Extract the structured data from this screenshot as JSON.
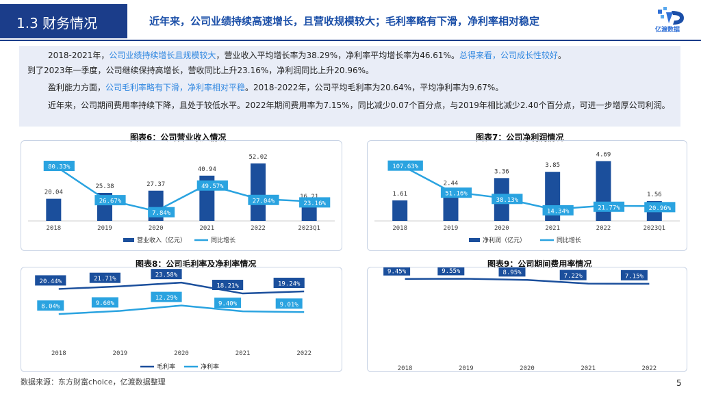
{
  "header": {
    "section": "1.3 财务情况",
    "title": "近年来，公司业绩持续高速增长，且营收规模较大；毛利率略有下滑，净利率相对稳定",
    "logo_text": "亿渡数据"
  },
  "summary": {
    "p1_a": "2018-2021年，",
    "p1_h1": "公司业绩持续增长且规模较大",
    "p1_b": "，营业收入平均增长率为38.29%，净利率平均增长率为46.61%。",
    "p1_h2": "总得来看，公司成长性较好",
    "p1_c": "。",
    "p2": "到了2023年一季度，公司继续保持高增长，营收同比上升23.16%，净利润同比上升20.96%。",
    "p3_a": "盈利能力方面，",
    "p3_h": "公司毛利率略有下滑，净利率相对平稳",
    "p3_b": "。2018-2022年，公司平均毛利率为20.64%，平均净利率为9.67%。",
    "p4": "近年来，公司期间费用率持续下降，且处于较低水平。2022年期间费用率为7.15%，同比减少0.07个百分点，与2019年相比减少2.40个百分点，可进一步增厚公司利润。"
  },
  "colors": {
    "bar": "#1b4f9c",
    "line": "#2aa3e0",
    "header": "#1b3d8a"
  },
  "chart_data": [
    {
      "type": "bar",
      "title": "图表6：公司营业收入情况",
      "categories": [
        "2018",
        "2019",
        "2020",
        "2021",
        "2022",
        "2023Q1"
      ],
      "series": [
        {
          "name": "营业收入（亿元）",
          "type": "bar",
          "values": [
            20.04,
            25.38,
            27.37,
            40.94,
            52.02,
            16.21
          ],
          "labels": [
            "20.04",
            "25.38",
            "27.37",
            "40.94",
            "52.02",
            "16.21"
          ]
        },
        {
          "name": "同比增长",
          "type": "line",
          "values": [
            80.33,
            26.67,
            7.84,
            49.57,
            27.04,
            23.16
          ],
          "labels": [
            "80.33%",
            "26.67%",
            "7.84%",
            "49.57%",
            "27.04%",
            "23.16%"
          ]
        }
      ],
      "legend": "bottom"
    },
    {
      "type": "bar",
      "title": "图表7：公司净利润情况",
      "categories": [
        "2018",
        "2019",
        "2020",
        "2021",
        "2022",
        "2023Q1"
      ],
      "series": [
        {
          "name": "净利润（亿元）",
          "type": "bar",
          "values": [
            1.61,
            2.44,
            3.36,
            3.85,
            4.69,
            1.56
          ],
          "labels": [
            "1.61",
            "2.44",
            "3.36",
            "3.85",
            "4.69",
            "1.56"
          ]
        },
        {
          "name": "同比增长",
          "type": "line",
          "values": [
            107.63,
            51.16,
            38.13,
            14.34,
            21.77,
            20.96
          ],
          "labels": [
            "107.63%",
            "51.16%",
            "38.13%",
            "14.34%",
            "21.77%",
            "20.96%"
          ]
        }
      ],
      "legend": "bottom"
    },
    {
      "type": "line",
      "title": "图表8：公司毛利率及净利率情况",
      "categories": [
        "2018",
        "2019",
        "2020",
        "2021",
        "2022"
      ],
      "series": [
        {
          "name": "毛利率",
          "values": [
            20.44,
            21.71,
            23.58,
            18.21,
            19.24
          ],
          "labels": [
            "20.44%",
            "21.71%",
            "23.58%",
            "18.21%",
            "19.24%"
          ]
        },
        {
          "name": "净利率",
          "values": [
            8.04,
            9.6,
            12.29,
            9.4,
            9.01
          ],
          "labels": [
            "8.04%",
            "9.60%",
            "12.29%",
            "9.40%",
            "9.01%"
          ]
        }
      ],
      "legend": "bottom"
    },
    {
      "type": "line",
      "title": "图表9：公司期间费用率情况",
      "categories": [
        "2018",
        "2019",
        "2020",
        "2021",
        "2022"
      ],
      "series": [
        {
          "values": [
            9.45,
            9.55,
            8.95,
            7.22,
            7.15
          ],
          "labels": [
            "9.45%",
            "9.55%",
            "8.95%",
            "7.22%",
            "7.15%"
          ]
        }
      ]
    }
  ],
  "footer": {
    "source": "数据来源：东方财富choice，亿渡数据整理",
    "page": "5"
  }
}
